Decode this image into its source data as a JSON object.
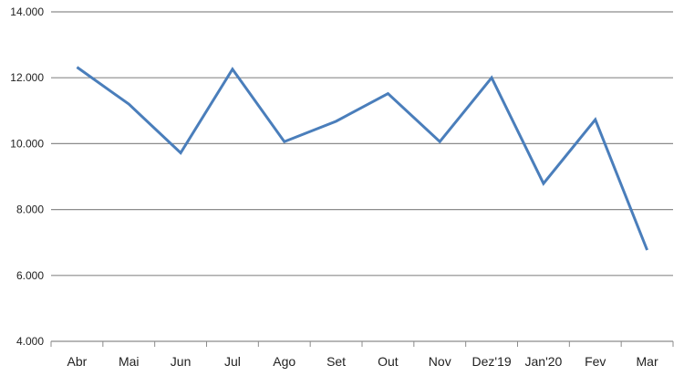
{
  "chart_data": {
    "type": "line",
    "title": "",
    "xlabel": "",
    "ylabel": "",
    "categories": [
      "Abr",
      "Mai",
      "Jun",
      "Jul",
      "Ago",
      "Set",
      "Out",
      "Nov",
      "Dez'19",
      "Jan'20",
      "Fev",
      "Mar"
    ],
    "values": [
      12320,
      11200,
      9720,
      12260,
      10060,
      10680,
      11520,
      10060,
      12000,
      8790,
      10730,
      6770
    ],
    "ylim": [
      4000,
      14000
    ],
    "yticks": [
      4000,
      6000,
      8000,
      10000,
      12000,
      14000
    ],
    "ytick_labels": [
      "4.000",
      "6.000",
      "8.000",
      "10.000",
      "12.000",
      "14.000"
    ],
    "grid": true,
    "legend": "none",
    "colors": {
      "line": "#4a7ebb",
      "grid": "#8c8c8c"
    }
  }
}
